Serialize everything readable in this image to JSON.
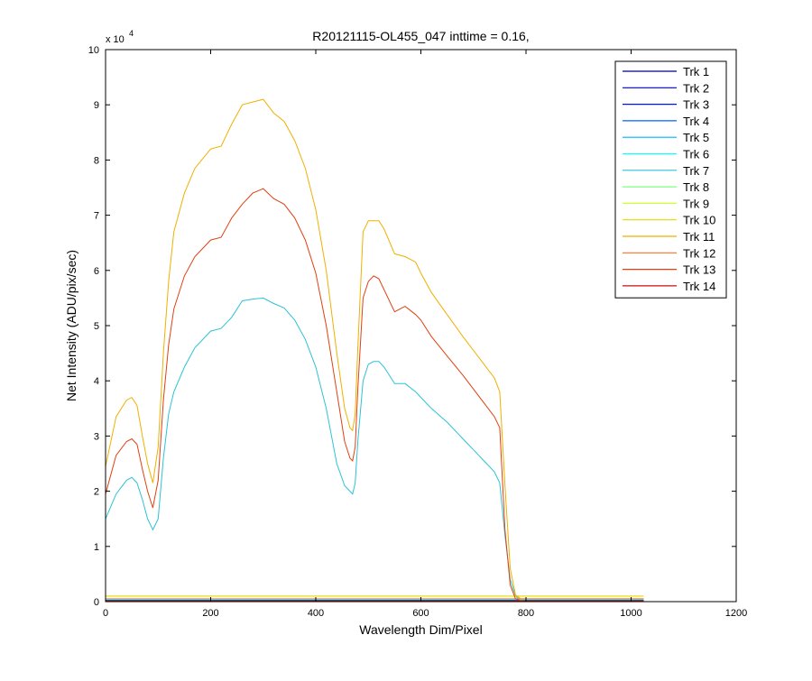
{
  "chart_data": {
    "type": "line",
    "title": "R20121115-OL455_047 inttime = 0.16,",
    "xlabel": "Wavelength Dim/Pixel",
    "ylabel": "Net Intensity (ADU/pix/sec)",
    "xlim": [
      0,
      1200
    ],
    "ylim": [
      0,
      100000
    ],
    "x_ticks": [
      "0",
      "200",
      "400",
      "600",
      "800",
      "1000",
      "1200"
    ],
    "y_ticks": [
      "0",
      "1",
      "2",
      "3",
      "4",
      "5",
      "6",
      "7",
      "8",
      "9",
      "10"
    ],
    "y_exponent": {
      "base": "x 10",
      "power": "4"
    },
    "grid": false,
    "legend_position": "top-right",
    "series": [
      {
        "name": "Trk 1",
        "color": "#00008f",
        "x": [
          0,
          1024
        ],
        "y": [
          150,
          150
        ]
      },
      {
        "name": "Trk 2",
        "color": "#0000cf",
        "x": [
          0,
          1024
        ],
        "y": [
          250,
          250
        ]
      },
      {
        "name": "Trk 3",
        "color": "#0010ff",
        "x": [
          0,
          1024
        ],
        "y": [
          300,
          300
        ]
      },
      {
        "name": "Trk 4",
        "color": "#0060ff",
        "x": [
          0,
          1024
        ],
        "y": [
          350,
          350
        ]
      },
      {
        "name": "Trk 5",
        "color": "#00b0ff",
        "x": [
          0,
          1024
        ],
        "y": [
          400,
          400
        ]
      },
      {
        "name": "Trk 6",
        "color": "#10ffef",
        "x": [
          0,
          1024
        ],
        "y": [
          400,
          400
        ]
      },
      {
        "name": "Trk 7",
        "color": "#2bc3d5",
        "x": [
          0,
          20,
          40,
          50,
          60,
          70,
          80,
          90,
          100,
          110,
          120,
          130,
          150,
          170,
          200,
          220,
          240,
          260,
          280,
          300,
          320,
          340,
          360,
          380,
          400,
          420,
          440,
          455,
          465,
          470,
          475,
          480,
          490,
          500,
          510,
          520,
          530,
          550,
          570,
          590,
          600,
          620,
          650,
          680,
          700,
          720,
          740,
          750,
          760,
          770,
          780,
          790,
          800,
          1024
        ],
        "y": [
          15000,
          19500,
          22000,
          22500,
          21500,
          18500,
          15000,
          13000,
          15000,
          26000,
          34000,
          38000,
          42500,
          46000,
          49000,
          49500,
          51500,
          54500,
          54800,
          55000,
          54000,
          53200,
          51000,
          47500,
          42500,
          35000,
          25000,
          21000,
          20000,
          19500,
          21500,
          29000,
          40000,
          43000,
          43500,
          43500,
          42500,
          39500,
          39500,
          38000,
          37000,
          35000,
          32500,
          29500,
          27500,
          25500,
          23500,
          21500,
          12000,
          4000,
          1000,
          200,
          0,
          0
        ]
      },
      {
        "name": "Trk 8",
        "color": "#7fff7f",
        "x": [
          0,
          1024
        ],
        "y": [
          450,
          450
        ]
      },
      {
        "name": "Trk 9",
        "color": "#cfff2f",
        "x": [
          0,
          1024
        ],
        "y": [
          1000,
          1000
        ]
      },
      {
        "name": "Trk 10",
        "color": "#e6d800",
        "x": [
          0,
          770,
          800,
          1024
        ],
        "y": [
          1000,
          1000,
          1000,
          1000
        ]
      },
      {
        "name": "Trk 11",
        "color": "#f0b000",
        "x": [
          0,
          20,
          40,
          50,
          60,
          70,
          80,
          90,
          100,
          110,
          120,
          130,
          150,
          170,
          200,
          220,
          240,
          260,
          280,
          300,
          320,
          340,
          360,
          380,
          400,
          420,
          440,
          455,
          465,
          470,
          475,
          480,
          490,
          500,
          510,
          520,
          530,
          550,
          570,
          590,
          600,
          620,
          650,
          680,
          700,
          720,
          740,
          750,
          760,
          770,
          780,
          790,
          800,
          1024
        ],
        "y": [
          24500,
          33500,
          36500,
          37000,
          35500,
          30000,
          25000,
          21500,
          28000,
          45000,
          58000,
          67000,
          74000,
          78500,
          82000,
          82500,
          86500,
          90000,
          90500,
          91000,
          88500,
          87000,
          83500,
          78500,
          71000,
          60000,
          45000,
          35000,
          31500,
          31000,
          34000,
          46000,
          67000,
          69000,
          69000,
          69000,
          67500,
          63000,
          62500,
          61500,
          59500,
          56000,
          52000,
          48000,
          45500,
          43000,
          40500,
          38000,
          21000,
          6000,
          1200,
          500,
          500,
          500
        ]
      },
      {
        "name": "Trk 12",
        "color": "#ff7020",
        "x": [
          0,
          1024
        ],
        "y": [
          500,
          500
        ]
      },
      {
        "name": "Trk 13",
        "color": "#e04010",
        "x": [
          0,
          20,
          40,
          50,
          60,
          70,
          80,
          90,
          100,
          110,
          120,
          130,
          150,
          170,
          200,
          220,
          240,
          260,
          280,
          300,
          320,
          340,
          360,
          380,
          400,
          420,
          440,
          455,
          465,
          470,
          475,
          480,
          490,
          500,
          510,
          520,
          530,
          550,
          570,
          590,
          600,
          620,
          650,
          680,
          700,
          720,
          740,
          750,
          760,
          770,
          780,
          790,
          800,
          1024
        ],
        "y": [
          19500,
          26500,
          29000,
          29500,
          28500,
          24000,
          20000,
          17000,
          22000,
          36500,
          46500,
          53000,
          59000,
          62500,
          65500,
          66000,
          69500,
          72000,
          74000,
          74800,
          73000,
          72000,
          69500,
          65500,
          59500,
          50000,
          38000,
          29000,
          26000,
          25500,
          28000,
          38500,
          55000,
          58000,
          59000,
          58500,
          56500,
          52500,
          53500,
          52000,
          51000,
          48000,
          44500,
          41000,
          38500,
          36000,
          33500,
          31500,
          13000,
          3000,
          500,
          200,
          100,
          100
        ]
      },
      {
        "name": "Trk 14",
        "color": "#c81010",
        "x": [
          0,
          1024
        ],
        "y": [
          100,
          100
        ]
      }
    ]
  }
}
